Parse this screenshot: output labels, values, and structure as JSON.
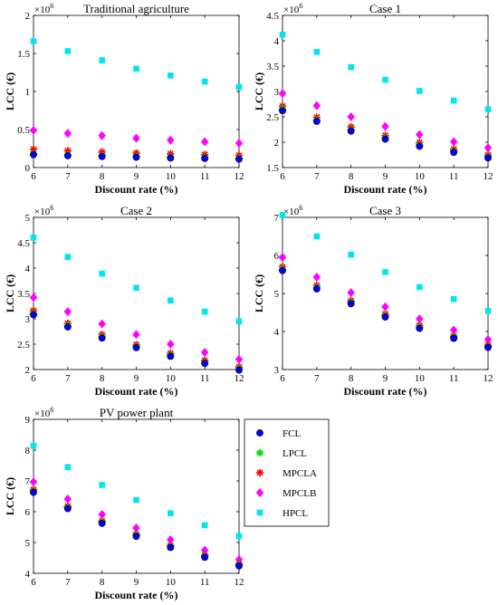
{
  "chart_data": [
    {
      "type": "scatter",
      "title": "Traditional agriculture",
      "xlabel": "Discount rate (%)",
      "ylabel": "LCC (€)",
      "exponent": "6",
      "x": [
        6,
        7,
        8,
        9,
        10,
        11,
        12
      ],
      "xlim": [
        6,
        12
      ],
      "ylim": [
        0,
        2
      ],
      "yticks": [
        0,
        0.5,
        1,
        1.5,
        2
      ],
      "ytick_labels": [
        "0",
        "0.5",
        "1",
        "1.5",
        "2"
      ],
      "series": [
        {
          "name": "FCL",
          "values": [
            0.17,
            0.155,
            0.145,
            0.135,
            0.125,
            0.12,
            0.11
          ]
        },
        {
          "name": "LPCL",
          "values": [
            0.18,
            0.165,
            0.155,
            0.145,
            0.135,
            0.13,
            0.12
          ]
        },
        {
          "name": "MPCLA",
          "values": [
            0.24,
            0.22,
            0.205,
            0.19,
            0.18,
            0.17,
            0.16
          ]
        },
        {
          "name": "MPCLB",
          "values": [
            0.49,
            0.45,
            0.42,
            0.385,
            0.36,
            0.34,
            0.32
          ]
        },
        {
          "name": "HPCL",
          "values": [
            1.66,
            1.53,
            1.41,
            1.3,
            1.21,
            1.13,
            1.06
          ]
        }
      ]
    },
    {
      "type": "scatter",
      "title": "Case 1",
      "xlabel": "Discount rate (%)",
      "ylabel": "LCC (€)",
      "exponent": "6",
      "x": [
        6,
        7,
        8,
        9,
        10,
        11,
        12
      ],
      "xlim": [
        6,
        12
      ],
      "ylim": [
        1.5,
        4.5
      ],
      "yticks": [
        1.5,
        2,
        2.5,
        3,
        3.5,
        4,
        4.5
      ],
      "ytick_labels": [
        "1.5",
        "2",
        "2.5",
        "3",
        "3.5",
        "4",
        "4.5"
      ],
      "series": [
        {
          "name": "FCL",
          "values": [
            2.62,
            2.41,
            2.22,
            2.06,
            1.92,
            1.8,
            1.69
          ]
        },
        {
          "name": "LPCL",
          "values": [
            2.65,
            2.43,
            2.24,
            2.08,
            1.94,
            1.82,
            1.71
          ]
        },
        {
          "name": "MPCLA",
          "values": [
            2.71,
            2.49,
            2.3,
            2.13,
            1.99,
            1.86,
            1.75
          ]
        },
        {
          "name": "MPCLB",
          "values": [
            2.96,
            2.72,
            2.5,
            2.31,
            2.15,
            2.01,
            1.89
          ]
        },
        {
          "name": "HPCL",
          "values": [
            4.12,
            3.78,
            3.48,
            3.23,
            3.01,
            2.82,
            2.65
          ]
        }
      ]
    },
    {
      "type": "scatter",
      "title": "Case 2",
      "xlabel": "Discount rate (%)",
      "ylabel": "LCC (€)",
      "exponent": "6",
      "x": [
        6,
        7,
        8,
        9,
        10,
        11,
        12
      ],
      "xlim": [
        6,
        12
      ],
      "ylim": [
        2,
        5
      ],
      "yticks": [
        2,
        2.5,
        3,
        3.5,
        4,
        4.5,
        5
      ],
      "ytick_labels": [
        "2",
        "2.5",
        "3",
        "3.5",
        "4",
        "4.5",
        "5"
      ],
      "series": [
        {
          "name": "FCL",
          "values": [
            3.08,
            2.84,
            2.62,
            2.43,
            2.26,
            2.12,
            1.99
          ]
        },
        {
          "name": "LPCL",
          "values": [
            3.1,
            2.86,
            2.64,
            2.45,
            2.28,
            2.13,
            2.01
          ]
        },
        {
          "name": "MPCLA",
          "values": [
            3.16,
            2.91,
            2.69,
            2.49,
            2.32,
            2.18,
            2.05
          ]
        },
        {
          "name": "MPCLB",
          "values": [
            3.42,
            3.14,
            2.9,
            2.69,
            2.5,
            2.34,
            2.2
          ]
        },
        {
          "name": "HPCL",
          "values": [
            4.6,
            4.22,
            3.89,
            3.61,
            3.36,
            3.14,
            2.95
          ]
        }
      ]
    },
    {
      "type": "scatter",
      "title": "Case 3",
      "xlabel": "Discount rate (%)",
      "ylabel": "LCC (€)",
      "exponent": "6",
      "x": [
        6,
        7,
        8,
        9,
        10,
        11,
        12
      ],
      "xlim": [
        6,
        12
      ],
      "ylim": [
        3,
        7
      ],
      "yticks": [
        3,
        4,
        5,
        6,
        7
      ],
      "ytick_labels": [
        "3",
        "4",
        "5",
        "6",
        "7"
      ],
      "series": [
        {
          "name": "FCL",
          "values": [
            5.6,
            5.12,
            4.73,
            4.38,
            4.08,
            3.82,
            3.58
          ]
        },
        {
          "name": "LPCL",
          "values": [
            5.63,
            5.15,
            4.76,
            4.41,
            4.11,
            3.84,
            3.6
          ]
        },
        {
          "name": "MPCLA",
          "values": [
            5.7,
            5.21,
            4.81,
            4.46,
            4.16,
            3.88,
            3.64
          ]
        },
        {
          "name": "MPCLB",
          "values": [
            5.95,
            5.43,
            5.02,
            4.65,
            4.33,
            4.04,
            3.79
          ]
        },
        {
          "name": "HPCL",
          "values": [
            7.06,
            6.5,
            6.02,
            5.56,
            5.17,
            4.85,
            4.54
          ]
        }
      ]
    },
    {
      "type": "scatter",
      "title": "PV power plant",
      "xlabel": "Discount rate (%)",
      "ylabel": "LCC (€)",
      "exponent": "6",
      "x": [
        6,
        7,
        8,
        9,
        10,
        11,
        12
      ],
      "xlim": [
        6,
        12
      ],
      "ylim": [
        4,
        9
      ],
      "yticks": [
        4,
        5,
        6,
        7,
        8,
        9
      ],
      "ytick_labels": [
        "4",
        "5",
        "6",
        "7",
        "8",
        "9"
      ],
      "series": [
        {
          "name": "FCL",
          "values": [
            6.63,
            6.1,
            5.62,
            5.2,
            4.84,
            4.52,
            4.24
          ]
        },
        {
          "name": "LPCL",
          "values": [
            6.66,
            6.13,
            5.65,
            5.23,
            4.87,
            4.55,
            4.27
          ]
        },
        {
          "name": "MPCLA",
          "values": [
            6.72,
            6.18,
            5.7,
            5.27,
            4.9,
            4.58,
            4.3
          ]
        },
        {
          "name": "MPCLB",
          "values": [
            6.97,
            6.41,
            5.91,
            5.47,
            5.09,
            4.75,
            4.45
          ]
        },
        {
          "name": "HPCL",
          "values": [
            8.14,
            7.45,
            6.87,
            6.38,
            5.95,
            5.56,
            5.21
          ]
        }
      ]
    }
  ],
  "legend": {
    "placement": "right of bottom plot",
    "entries": [
      {
        "name": "FCL",
        "marker": "circle",
        "color": "#0000ff"
      },
      {
        "name": "LPCL",
        "marker": "asterisk",
        "color": "#00dd00"
      },
      {
        "name": "MPCLA",
        "marker": "asterisk",
        "color": "#ff0000"
      },
      {
        "name": "MPCLB",
        "marker": "diamond",
        "color": "#ff00ff"
      },
      {
        "name": "HPCL",
        "marker": "square",
        "color": "#00e5ee"
      }
    ]
  },
  "xticks": [
    6,
    7,
    8,
    9,
    10,
    11,
    12
  ]
}
